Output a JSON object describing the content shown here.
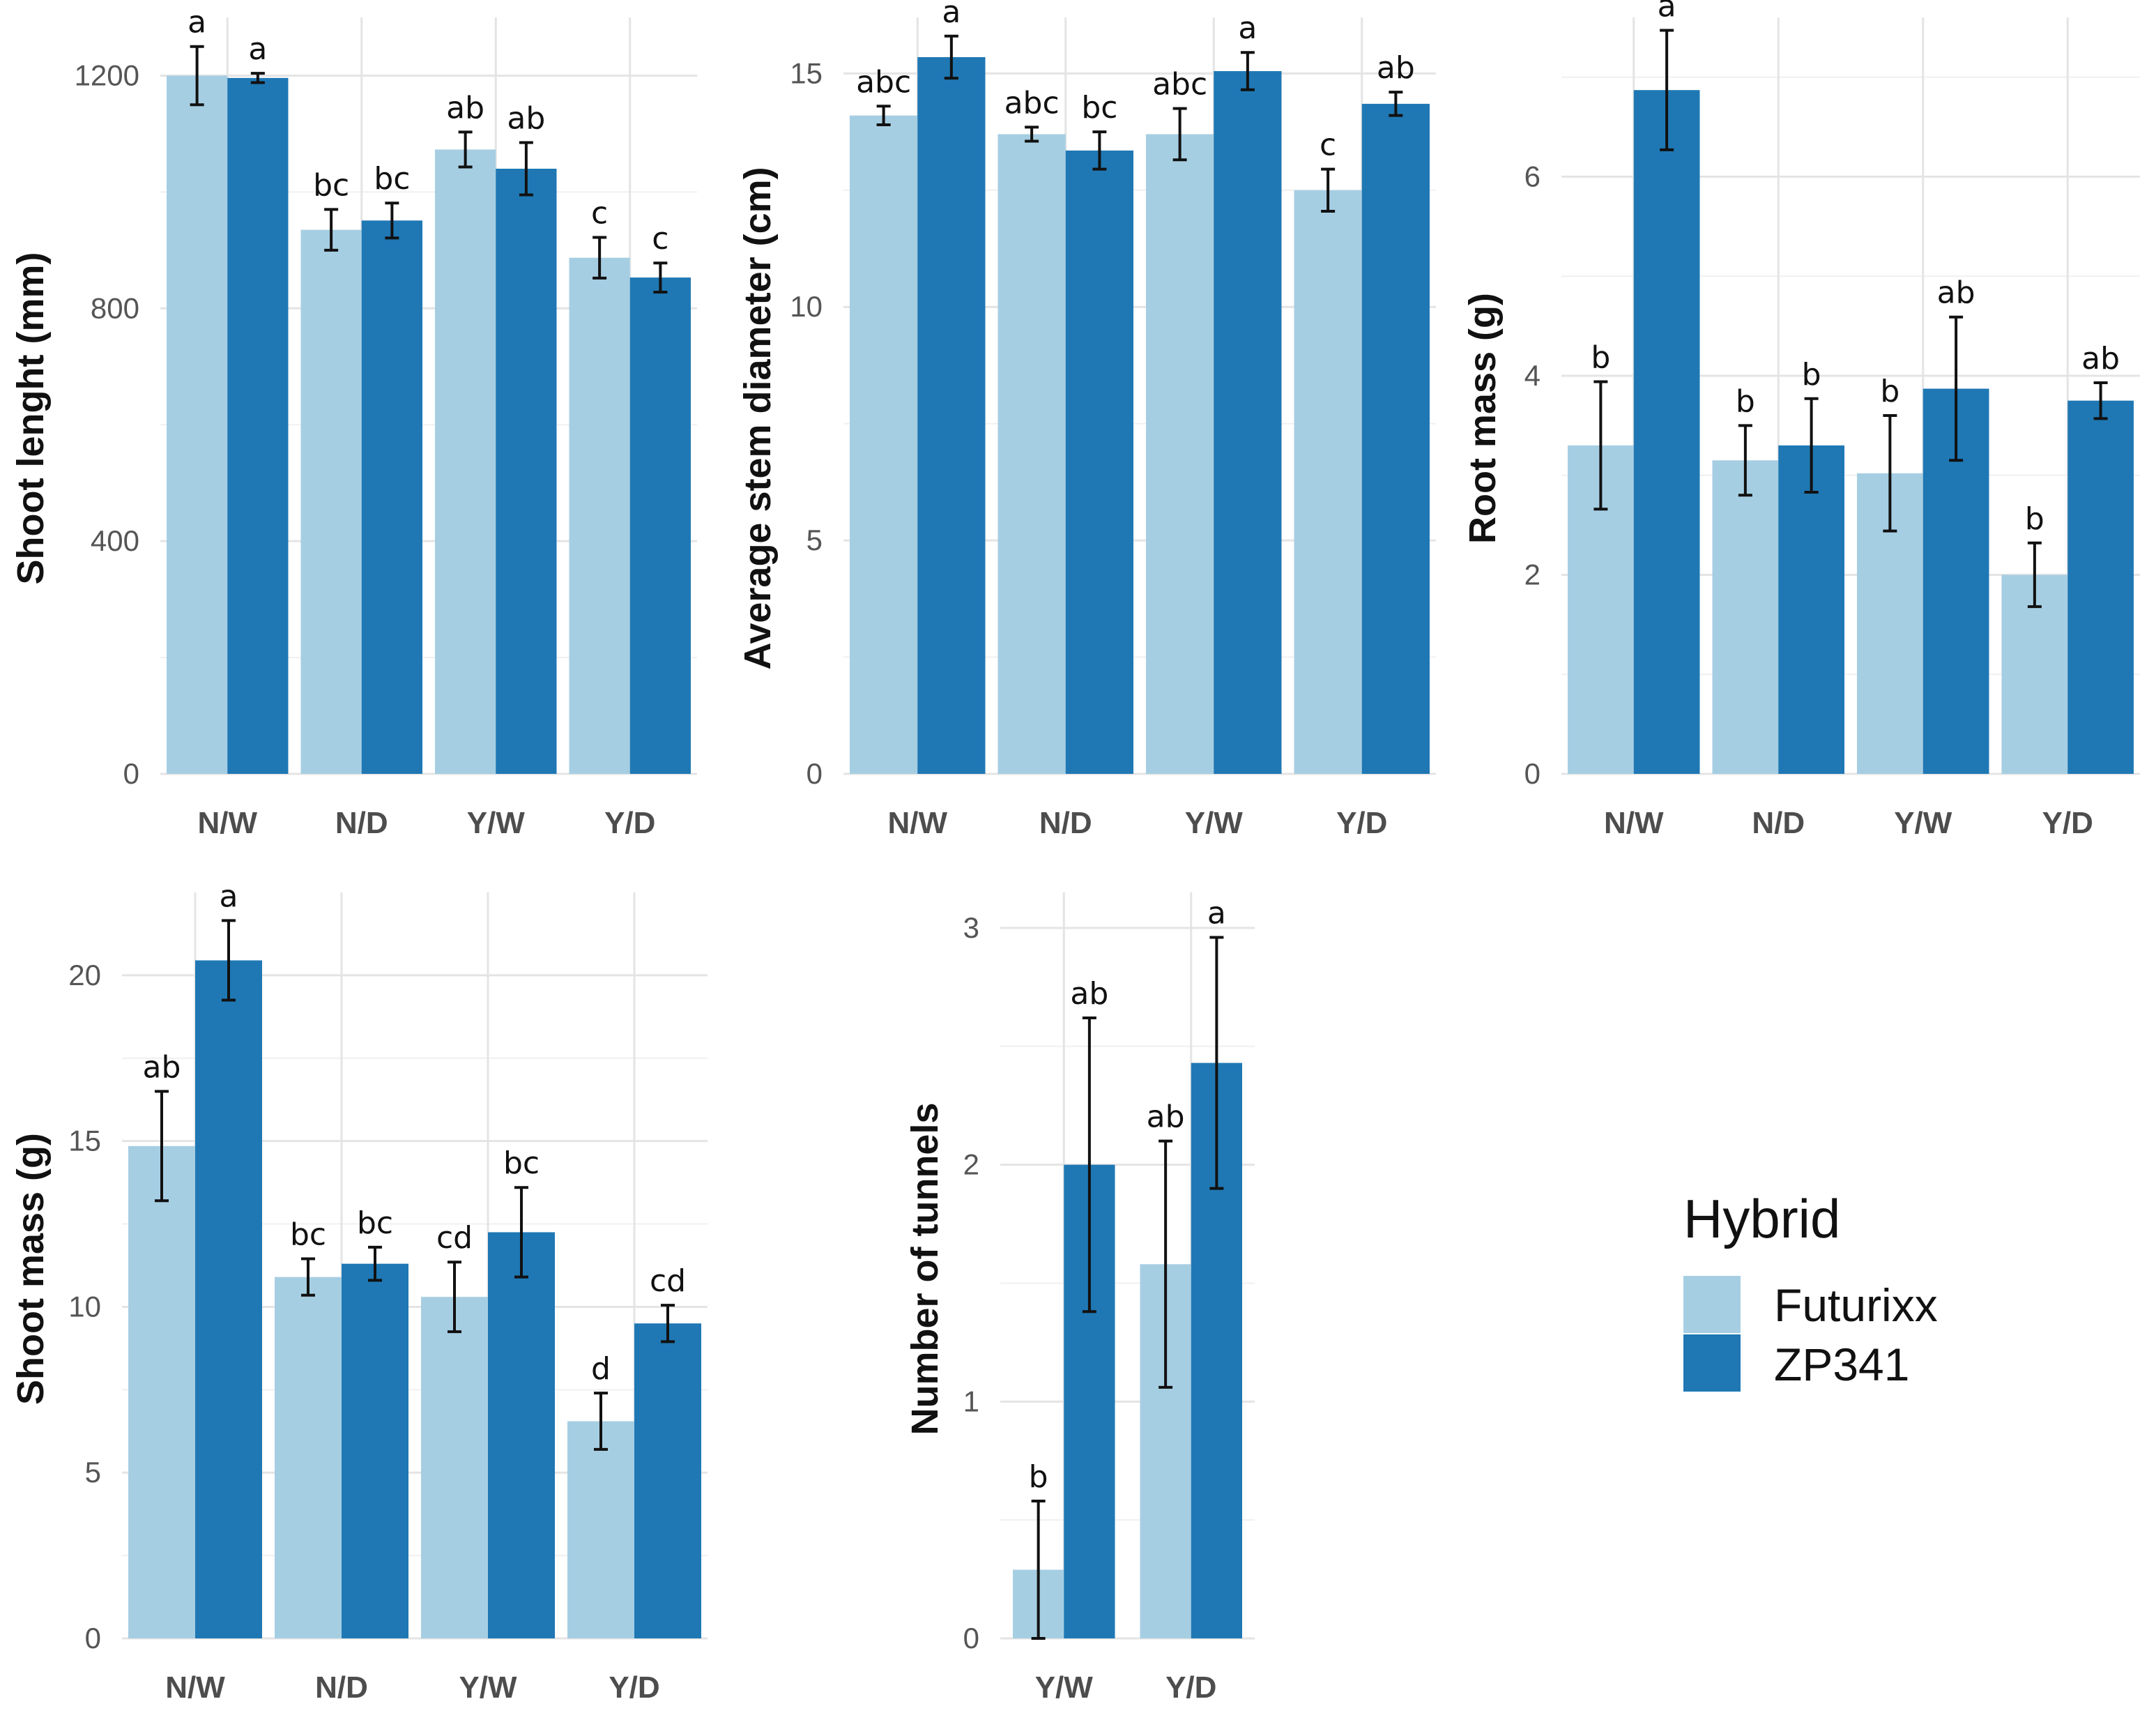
{
  "colors": {
    "Futurixx": "#a6cee3",
    "ZP341": "#1f78b4"
  },
  "legend": {
    "title": "Hybrid",
    "items": [
      "Futurixx",
      "ZP341"
    ]
  },
  "chart_data": [
    {
      "type": "bar",
      "ylabel": "Shoot lenght (mm)",
      "ylim": [
        0,
        1300
      ],
      "yticks": [
        0,
        400,
        800,
        1200
      ],
      "categories": [
        "N/W",
        "N/D",
        "Y/W",
        "Y/D"
      ],
      "series": [
        {
          "name": "Futurixx",
          "values": [
            1200,
            935,
            1073,
            887
          ],
          "errors": [
            50,
            35,
            30,
            35
          ],
          "letters": [
            "a",
            "bc",
            "ab",
            "c"
          ]
        },
        {
          "name": "ZP341",
          "values": [
            1196,
            951,
            1040,
            853
          ],
          "errors": [
            8,
            30,
            45,
            25
          ],
          "letters": [
            "a",
            "bc",
            "ab",
            "c"
          ]
        }
      ]
    },
    {
      "type": "bar",
      "ylabel": "Average stem diameter (cm)",
      "ylim": [
        0,
        16.2
      ],
      "yticks": [
        0,
        5,
        10,
        15
      ],
      "categories": [
        "N/W",
        "N/D",
        "Y/W",
        "Y/D"
      ],
      "series": [
        {
          "name": "Futurixx",
          "values": [
            14.1,
            13.7,
            13.7,
            12.5
          ],
          "errors": [
            0.2,
            0.15,
            0.55,
            0.45
          ],
          "letters": [
            "abc",
            "abc",
            "abc",
            "c"
          ]
        },
        {
          "name": "ZP341",
          "values": [
            15.35,
            13.35,
            15.05,
            14.35
          ],
          "errors": [
            0.45,
            0.4,
            0.4,
            0.25
          ],
          "letters": [
            "a",
            "bc",
            "a",
            "ab"
          ]
        }
      ]
    },
    {
      "type": "bar",
      "ylabel": "Root mass (g)",
      "ylim": [
        0,
        7.6
      ],
      "yticks": [
        0,
        2,
        4,
        6
      ],
      "categories": [
        "N/W",
        "N/D",
        "Y/W",
        "Y/D"
      ],
      "series": [
        {
          "name": "Futurixx",
          "values": [
            3.3,
            3.15,
            3.02,
            2.0
          ],
          "errors": [
            0.64,
            0.35,
            0.58,
            0.32
          ],
          "letters": [
            "b",
            "b",
            "b",
            "b"
          ]
        },
        {
          "name": "ZP341",
          "values": [
            6.87,
            3.3,
            3.87,
            3.75
          ],
          "errors": [
            0.6,
            0.47,
            0.72,
            0.18
          ],
          "letters": [
            "a",
            "b",
            "ab",
            "ab"
          ]
        }
      ]
    },
    {
      "type": "bar",
      "ylabel": "Shoot mass (g)",
      "ylim": [
        0,
        22.5
      ],
      "yticks": [
        0,
        5,
        10,
        15,
        20
      ],
      "categories": [
        "N/W",
        "N/D",
        "Y/W",
        "Y/D"
      ],
      "series": [
        {
          "name": "Futurixx",
          "values": [
            14.85,
            10.9,
            10.3,
            6.55
          ],
          "errors": [
            1.65,
            0.55,
            1.05,
            0.85
          ],
          "letters": [
            "ab",
            "bc",
            "cd",
            "d"
          ]
        },
        {
          "name": "ZP341",
          "values": [
            20.45,
            11.3,
            12.25,
            9.5
          ],
          "errors": [
            1.2,
            0.5,
            1.35,
            0.55
          ],
          "letters": [
            "a",
            "bc",
            "bc",
            "cd"
          ]
        }
      ]
    },
    {
      "type": "bar",
      "ylabel": "Number of tunnels",
      "ylim": [
        0,
        3.15
      ],
      "yticks": [
        0,
        1,
        2,
        3
      ],
      "categories": [
        "Y/W",
        "Y/D"
      ],
      "series": [
        {
          "name": "Futurixx",
          "values": [
            0.29,
            1.58
          ],
          "errors": [
            0.29,
            0.52
          ],
          "letters": [
            "b",
            "ab"
          ]
        },
        {
          "name": "ZP341",
          "values": [
            2.0,
            2.43
          ],
          "errors": [
            0.62,
            0.53
          ],
          "letters": [
            "ab",
            "a"
          ]
        }
      ]
    }
  ]
}
